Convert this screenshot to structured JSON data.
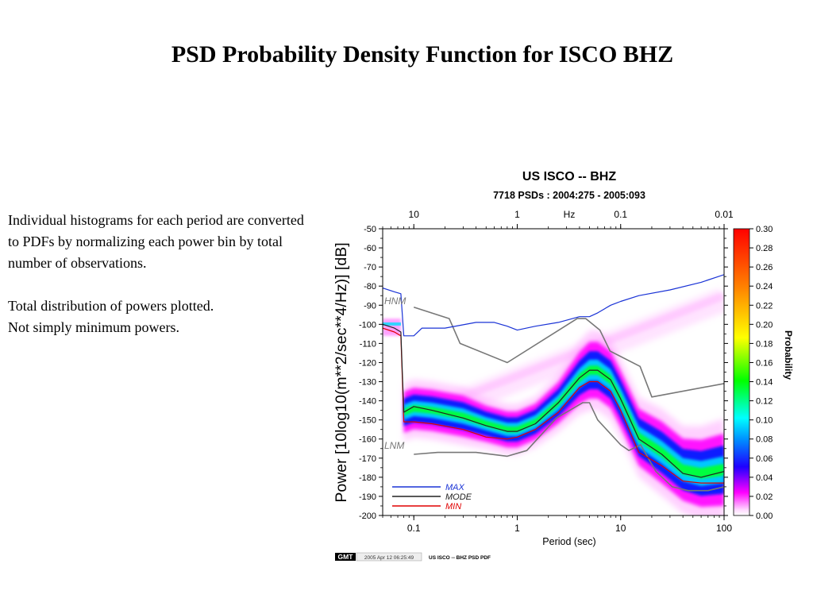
{
  "slide": {
    "title": "PSD Probability Density Function for ISCO BHZ",
    "notes": [
      "Individual histograms for each period are converted to PDFs by normalizing each power bin by total number of observations.",
      "Total distribution of powers plotted.",
      "Not simply minimum powers."
    ]
  },
  "chart_data": {
    "type": "heatmap",
    "title": "US ISCO -- BHZ",
    "subtitle": "7718 PSDs : 2004:275 - 2005:093",
    "xlabel": "Period (sec)",
    "ylabel": "Power [10log10(m**2/sec**4/Hz)] [dB]",
    "x_scale": "log",
    "xlim": [
      0.05,
      100
    ],
    "ylim": [
      -200,
      -50
    ],
    "x_ticks": [
      {
        "value": 0.1,
        "label": "0.1"
      },
      {
        "value": 1,
        "label": "1"
      },
      {
        "value": 10,
        "label": "10"
      },
      {
        "value": 100,
        "label": "100"
      }
    ],
    "y_ticks": [
      -50,
      -60,
      -70,
      -80,
      -90,
      -100,
      -110,
      -120,
      -130,
      -140,
      -150,
      -160,
      -170,
      -180,
      -190,
      -200
    ],
    "top_axis": {
      "label": "Hz",
      "ticks": [
        {
          "value": 10,
          "label": "10"
        },
        {
          "value": 1,
          "label": "1"
        },
        {
          "value": 0.1,
          "label": "0.1"
        },
        {
          "value": 0.01,
          "label": "0.01"
        }
      ]
    },
    "colorbar": {
      "label": "Probability",
      "range": [
        0,
        0.3
      ],
      "ticks": [
        "0.00",
        "0.02",
        "0.04",
        "0.06",
        "0.08",
        "0.10",
        "0.12",
        "0.14",
        "0.16",
        "0.18",
        "0.20",
        "0.22",
        "0.24",
        "0.26",
        "0.28",
        "0.30"
      ],
      "colors": [
        "#ffffff",
        "#ff00ff",
        "#0000ff",
        "#00ffff",
        "#00ff00",
        "#ffff00",
        "#ff8000",
        "#ff0000"
      ]
    },
    "annotations": [
      {
        "text": "HNM",
        "x": 0.06,
        "y": -89
      },
      {
        "text": "LNM",
        "x": 0.06,
        "y": -168
      }
    ],
    "legend": {
      "position": "bottom-left",
      "entries": [
        {
          "name": "MAX",
          "color": "#1a33d6"
        },
        {
          "name": "MODE",
          "color": "#222222"
        },
        {
          "name": "MIN",
          "color": "#e00000"
        }
      ]
    },
    "series": [
      {
        "name": "MAX",
        "color": "#1a33d6",
        "x": [
          0.05,
          0.065,
          0.075,
          0.08,
          0.1,
          0.12,
          0.2,
          0.4,
          0.6,
          0.8,
          1.0,
          1.5,
          2.5,
          4,
          5,
          6,
          8,
          10,
          15,
          30,
          60,
          100
        ],
        "y": [
          -81,
          -83,
          -84,
          -106,
          -106,
          -102,
          -102,
          -99,
          -99,
          -101,
          -103,
          -101,
          -99,
          -96,
          -96,
          -94,
          -90,
          -88,
          -85,
          -82,
          -78,
          -74
        ]
      },
      {
        "name": "MODE",
        "color": "#222222",
        "x": [
          0.05,
          0.065,
          0.075,
          0.08,
          0.1,
          0.15,
          0.3,
          0.5,
          0.8,
          1.0,
          1.5,
          2.5,
          4,
          5,
          6,
          8,
          10,
          15,
          25,
          40,
          60,
          100
        ],
        "y": [
          -100,
          -102,
          -104,
          -146,
          -143,
          -145,
          -149,
          -153,
          -156,
          -156,
          -152,
          -141,
          -128,
          -124,
          -124,
          -129,
          -139,
          -160,
          -168,
          -178,
          -180,
          -177
        ]
      },
      {
        "name": "MIN",
        "color": "#e00000",
        "x": [
          0.05,
          0.065,
          0.075,
          0.08,
          0.1,
          0.15,
          0.3,
          0.5,
          0.8,
          1.0,
          1.5,
          2.5,
          4,
          5,
          6,
          8,
          10,
          15,
          25,
          40,
          60,
          100
        ],
        "y": [
          -102,
          -104,
          -106,
          -151,
          -151,
          -152,
          -155,
          -159,
          -160,
          -159,
          -155,
          -146,
          -133,
          -130,
          -130,
          -135,
          -145,
          -167,
          -174,
          -182,
          -183,
          -183
        ]
      },
      {
        "name": "HNM",
        "color": "#777777",
        "x": [
          0.1,
          0.22,
          0.28,
          0.8,
          3.8,
          4.6,
          6.3,
          7.9,
          15.4,
          20,
          100
        ],
        "y": [
          -91,
          -97,
          -110,
          -120,
          -97,
          -97,
          -103,
          -114,
          -122,
          -138,
          -131
        ]
      },
      {
        "name": "LNM",
        "color": "#777777",
        "x": [
          0.1,
          0.17,
          0.4,
          0.8,
          1.24,
          2.4,
          4.3,
          5,
          6,
          10,
          12,
          15.6,
          21.9,
          31.6,
          45,
          70,
          100
        ],
        "y": [
          -168,
          -167,
          -167,
          -169,
          -166,
          -149,
          -141,
          -141,
          -150,
          -163,
          -166,
          -163,
          -177,
          -185,
          -187,
          -187,
          -185
        ]
      }
    ],
    "pdf_ridge": {
      "x": [
        0.08,
        0.1,
        0.15,
        0.3,
        0.5,
        0.8,
        1.0,
        1.5,
        2.5,
        4,
        5,
        6,
        8,
        10,
        15,
        25,
        40,
        60,
        100
      ],
      "y": [
        -146,
        -144,
        -145,
        -148,
        -152,
        -155,
        -155,
        -151,
        -141,
        -128,
        -124,
        -124,
        -129,
        -139,
        -159,
        -167,
        -176,
        -178,
        -176
      ],
      "spread_db": [
        8,
        8,
        8,
        8,
        7,
        7,
        7,
        7,
        8,
        10,
        11,
        11,
        11,
        11,
        11,
        12,
        12,
        13,
        14
      ]
    },
    "pdf_tail": {
      "x": [
        0.1,
        100
      ],
      "y": [
        -150,
        -87
      ]
    }
  },
  "footer": {
    "badge": "GMT",
    "timestamp": "2005 Apr 12 06:25:49",
    "caption": "US ISCO -- BHZ PSD PDF"
  }
}
